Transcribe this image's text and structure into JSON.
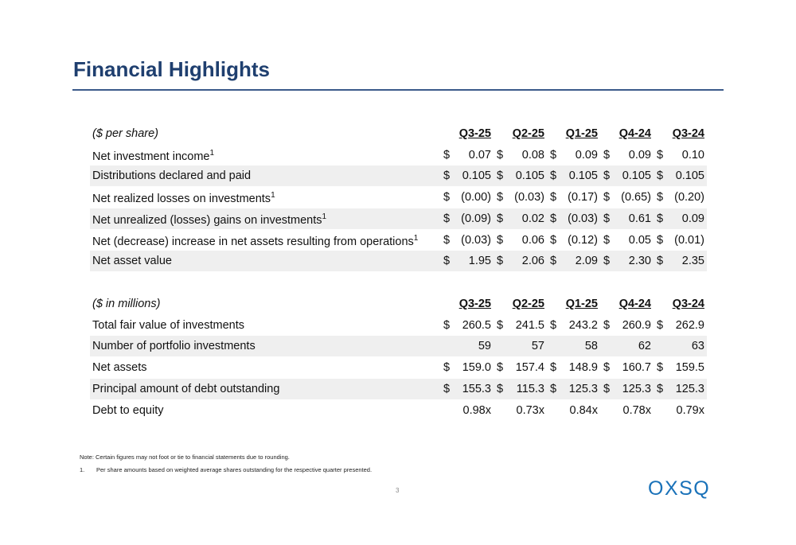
{
  "title": "Financial Highlights",
  "tables": [
    {
      "caption": "($ per share)",
      "columns": [
        "Q3-25",
        "Q2-25",
        "Q1-25",
        "Q4-24",
        "Q3-24"
      ],
      "rows": [
        {
          "label": "Net investment income",
          "sup": "1",
          "cells": [
            {
              "currency": "$",
              "value": "0.07"
            },
            {
              "currency": "$",
              "value": "0.08"
            },
            {
              "currency": "$",
              "value": "0.09"
            },
            {
              "currency": "$",
              "value": "0.09"
            },
            {
              "currency": "$",
              "value": "0.10"
            }
          ]
        },
        {
          "label": "Distributions declared and paid",
          "cells": [
            {
              "currency": "$",
              "value": "0.105"
            },
            {
              "currency": "$",
              "value": "0.105"
            },
            {
              "currency": "$",
              "value": "0.105"
            },
            {
              "currency": "$",
              "value": "0.105"
            },
            {
              "currency": "$",
              "value": "0.105"
            }
          ]
        },
        {
          "label": "Net realized losses on investments",
          "sup": "1",
          "cells": [
            {
              "currency": "$",
              "value": "(0.00)"
            },
            {
              "currency": "$",
              "value": "(0.03)"
            },
            {
              "currency": "$",
              "value": "(0.17)"
            },
            {
              "currency": "$",
              "value": "(0.65)"
            },
            {
              "currency": "$",
              "value": "(0.20)"
            }
          ]
        },
        {
          "label": "Net unrealized (losses) gains on investments",
          "sup": "1",
          "cells": [
            {
              "currency": "$",
              "value": "(0.09)"
            },
            {
              "currency": "$",
              "value": "0.02"
            },
            {
              "currency": "$",
              "value": "(0.03)"
            },
            {
              "currency": "$",
              "value": "0.61"
            },
            {
              "currency": "$",
              "value": "0.09"
            }
          ]
        },
        {
          "label": "Net (decrease) increase in net assets resulting from operations",
          "sup": "1",
          "cells": [
            {
              "currency": "$",
              "value": "(0.03)"
            },
            {
              "currency": "$",
              "value": "0.06"
            },
            {
              "currency": "$",
              "value": "(0.12)"
            },
            {
              "currency": "$",
              "value": "0.05"
            },
            {
              "currency": "$",
              "value": "(0.01)"
            }
          ]
        },
        {
          "label": "Net asset value",
          "cells": [
            {
              "currency": "$",
              "value": "1.95"
            },
            {
              "currency": "$",
              "value": "2.06"
            },
            {
              "currency": "$",
              "value": "2.09"
            },
            {
              "currency": "$",
              "value": "2.30"
            },
            {
              "currency": "$",
              "value": "2.35"
            }
          ]
        }
      ]
    },
    {
      "caption": "($ in millions)",
      "columns": [
        "Q3-25",
        "Q2-25",
        "Q1-25",
        "Q4-24",
        "Q3-24"
      ],
      "rows": [
        {
          "label": "Total fair value of investments",
          "cells": [
            {
              "currency": "$",
              "value": "260.5"
            },
            {
              "currency": "$",
              "value": "241.5"
            },
            {
              "currency": "$",
              "value": "243.2"
            },
            {
              "currency": "$",
              "value": "260.9"
            },
            {
              "currency": "$",
              "value": "262.9"
            }
          ]
        },
        {
          "label": "Number of portfolio investments",
          "cells": [
            {
              "value": "59"
            },
            {
              "value": "57"
            },
            {
              "value": "58"
            },
            {
              "value": "62"
            },
            {
              "value": "63"
            }
          ]
        },
        {
          "label": "Net assets",
          "cells": [
            {
              "currency": "$",
              "value": "159.0"
            },
            {
              "currency": "$",
              "value": "157.4"
            },
            {
              "currency": "$",
              "value": "148.9"
            },
            {
              "currency": "$",
              "value": "160.7"
            },
            {
              "currency": "$",
              "value": "159.5"
            }
          ]
        },
        {
          "label": "Principal amount of debt outstanding",
          "cells": [
            {
              "currency": "$",
              "value": "155.3"
            },
            {
              "currency": "$",
              "value": "115.3"
            },
            {
              "currency": "$",
              "value": "125.3"
            },
            {
              "currency": "$",
              "value": "125.3"
            },
            {
              "currency": "$",
              "value": "125.3"
            }
          ]
        },
        {
          "label": "Debt to equity",
          "cells": [
            {
              "value": "0.98x"
            },
            {
              "value": "0.73x"
            },
            {
              "value": "0.84x"
            },
            {
              "value": "0.78x"
            },
            {
              "value": "0.79x"
            }
          ]
        }
      ]
    }
  ],
  "note": "Note: Certain figures may not foot or tie to financial statements due to rounding.",
  "footnotes": [
    {
      "marker": "1.",
      "text": "Per share amounts based on weighted average shares outstanding for the respective quarter presented."
    }
  ],
  "page_number": "3",
  "logo": "OXSQ"
}
